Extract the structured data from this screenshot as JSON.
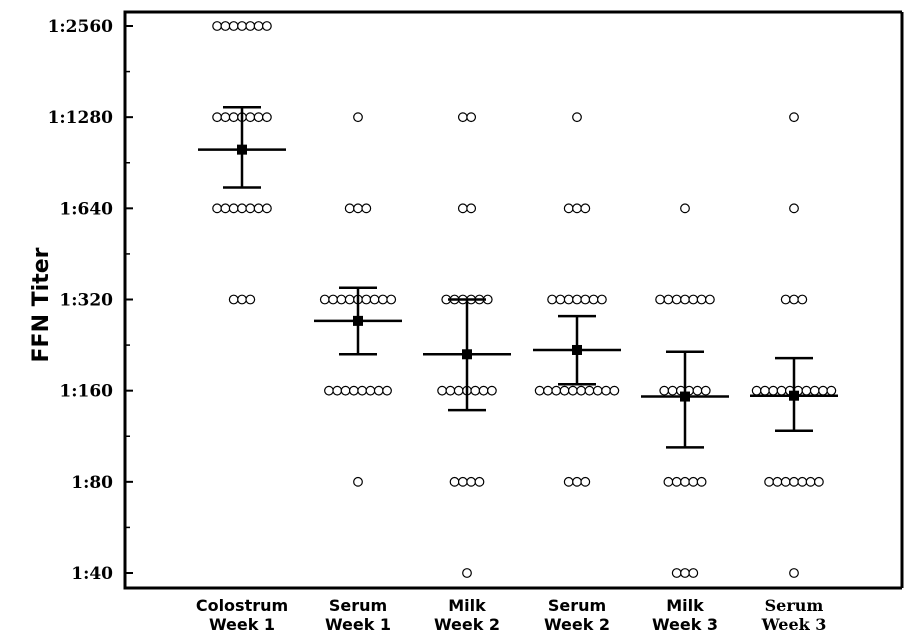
{
  "chart_data": {
    "type": "scatter",
    "title": "",
    "ylabel": "FFN Titer",
    "xlabel": "",
    "y_scale": "log2",
    "ylim": [
      40,
      2560
    ],
    "y_ticks": [
      {
        "value": 40,
        "label": "1:40"
      },
      {
        "value": 80,
        "label": "1:80"
      },
      {
        "value": 160,
        "label": "1:160"
      },
      {
        "value": 320,
        "label": "1:320"
      },
      {
        "value": 640,
        "label": "1:640"
      },
      {
        "value": 1280,
        "label": "1:1280"
      },
      {
        "value": 2560,
        "label": "1:2560"
      }
    ],
    "grid": false,
    "legend": "none",
    "groups": [
      {
        "label_line1": "Colostrum",
        "label_line2": "Week 1",
        "points": [
          {
            "titer": 2560,
            "n": 7
          },
          {
            "titer": 1280,
            "n": 7
          },
          {
            "titer": 640,
            "n": 7
          },
          {
            "titer": 320,
            "n": 3
          }
        ],
        "mean": 1000,
        "error_low": 750,
        "error_high": 1380
      },
      {
        "label_line1": "Serum",
        "label_line2": "Week 1",
        "points": [
          {
            "titer": 1280,
            "n": 1
          },
          {
            "titer": 640,
            "n": 3
          },
          {
            "titer": 320,
            "n": 9
          },
          {
            "titer": 160,
            "n": 8
          },
          {
            "titer": 80,
            "n": 1
          }
        ],
        "mean": 272,
        "error_low": 211,
        "error_high": 350
      },
      {
        "label_line1": "Milk",
        "label_line2": "Week 2",
        "points": [
          {
            "titer": 1280,
            "n": 2
          },
          {
            "titer": 640,
            "n": 2
          },
          {
            "titer": 320,
            "n": 6
          },
          {
            "titer": 160,
            "n": 7
          },
          {
            "titer": 80,
            "n": 4
          },
          {
            "titer": 40,
            "n": 1
          }
        ],
        "mean": 211,
        "error_low": 138,
        "error_high": 320
      },
      {
        "label_line1": "Serum",
        "label_line2": "Week 2",
        "points": [
          {
            "titer": 1280,
            "n": 1
          },
          {
            "titer": 640,
            "n": 3
          },
          {
            "titer": 320,
            "n": 7
          },
          {
            "titer": 160,
            "n": 10
          },
          {
            "titer": 80,
            "n": 3
          }
        ],
        "mean": 218,
        "error_low": 168,
        "error_high": 282
      },
      {
        "label_line1": "Milk",
        "label_line2": "Week 3",
        "points": [
          {
            "titer": 640,
            "n": 1
          },
          {
            "titer": 320,
            "n": 7
          },
          {
            "titer": 160,
            "n": 6
          },
          {
            "titer": 80,
            "n": 5
          },
          {
            "titer": 40,
            "n": 3
          }
        ],
        "mean": 153,
        "error_low": 104,
        "error_high": 215
      },
      {
        "label_line1": "Serum",
        "label_line2": "Week 3",
        "points": [
          {
            "titer": 1280,
            "n": 1
          },
          {
            "titer": 640,
            "n": 1
          },
          {
            "titer": 320,
            "n": 3
          },
          {
            "titer": 160,
            "n": 10
          },
          {
            "titer": 80,
            "n": 7
          },
          {
            "titer": 40,
            "n": 1
          }
        ],
        "mean": 154,
        "error_low": 118,
        "error_high": 205
      }
    ]
  }
}
